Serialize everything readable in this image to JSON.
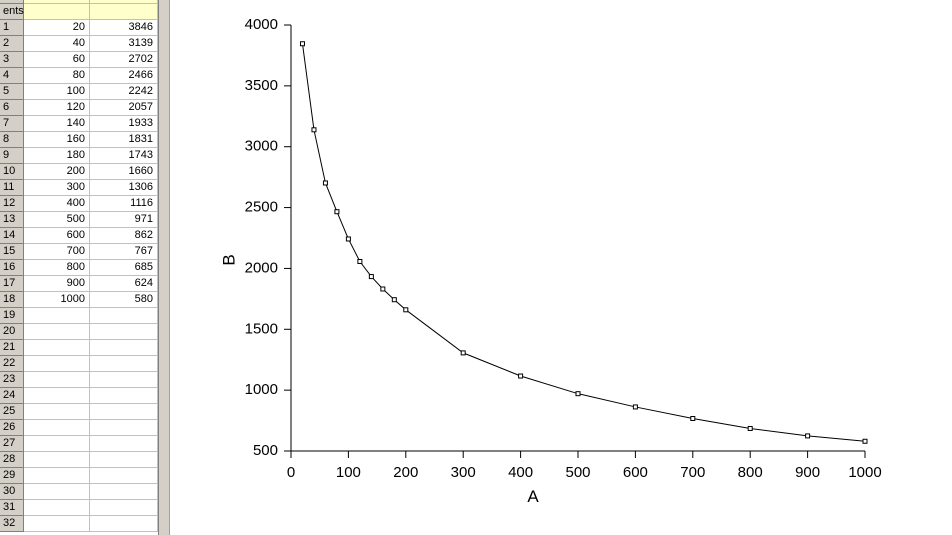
{
  "sheet": {
    "comments_label": "ents",
    "rows": [
      [
        1,
        20,
        3846
      ],
      [
        2,
        40,
        3139
      ],
      [
        3,
        60,
        2702
      ],
      [
        4,
        80,
        2466
      ],
      [
        5,
        100,
        2242
      ],
      [
        6,
        120,
        2057
      ],
      [
        7,
        140,
        1933
      ],
      [
        8,
        160,
        1831
      ],
      [
        9,
        180,
        1743
      ],
      [
        10,
        200,
        1660
      ],
      [
        11,
        300,
        1306
      ],
      [
        12,
        400,
        1116
      ],
      [
        13,
        500,
        971
      ],
      [
        14,
        600,
        862
      ],
      [
        15,
        700,
        767
      ],
      [
        16,
        800,
        685
      ],
      [
        17,
        900,
        624
      ],
      [
        18,
        1000,
        580
      ]
    ],
    "empty_rows": [
      19,
      20,
      21,
      22,
      23,
      24,
      25,
      26,
      27,
      28,
      29,
      30,
      31,
      32
    ]
  },
  "chart_data": {
    "type": "line",
    "xlabel": "A",
    "ylabel": "B",
    "x": [
      20,
      40,
      60,
      80,
      100,
      120,
      140,
      160,
      180,
      200,
      300,
      400,
      500,
      600,
      700,
      800,
      900,
      1000
    ],
    "series": [
      {
        "color": "#000000",
        "values": [
          3846,
          3139,
          2702,
          2466,
          2242,
          2057,
          1933,
          1831,
          1743,
          1660,
          1306,
          1116,
          971,
          862,
          767,
          685,
          624,
          580
        ]
      }
    ],
    "xlim": [
      0,
      1000
    ],
    "ylim": [
      500,
      4000
    ],
    "xticks": [
      0,
      100,
      200,
      300,
      400,
      500,
      600,
      700,
      800,
      900,
      1000
    ],
    "yticks": [
      500,
      1000,
      1500,
      2000,
      2500,
      3000,
      3500,
      4000
    ],
    "markers": true
  }
}
